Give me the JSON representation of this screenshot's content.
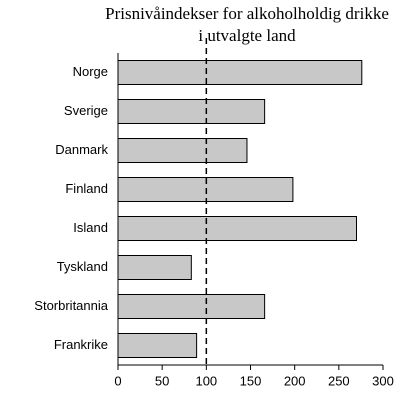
{
  "chart_data": {
    "type": "hbar",
    "title": [
      "Prisnivåindekser for alkoholholdig drikke",
      "i utvalgte land"
    ],
    "categories": [
      "Norge",
      "Sverige",
      "Danmark",
      "Finland",
      "Island",
      "Tyskland",
      "Storbritannia",
      "Frankrike"
    ],
    "values": [
      276,
      166,
      146,
      198,
      270,
      83,
      166,
      89
    ],
    "color": "#c8c8c8",
    "xlim": [
      0,
      300
    ],
    "xticks": [
      0,
      50,
      100,
      150,
      200,
      250,
      300
    ],
    "reference_line": 100
  }
}
